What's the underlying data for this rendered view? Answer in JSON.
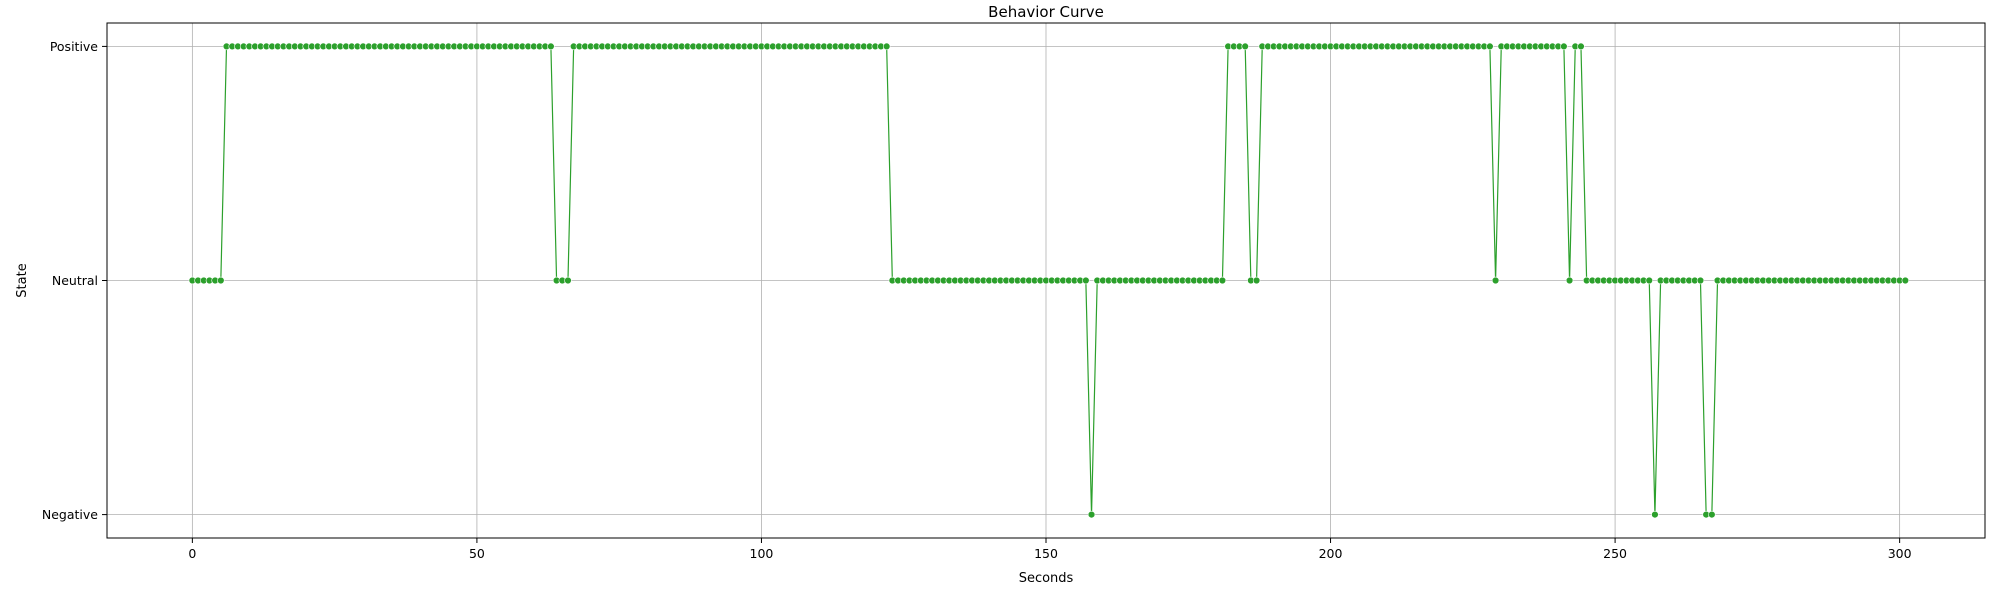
{
  "chart_data": {
    "type": "line",
    "title": "Behavior Curve",
    "xlabel": "Seconds",
    "ylabel": "State",
    "xlim": [
      -15,
      315
    ],
    "xticks": [
      0,
      50,
      100,
      150,
      200,
      250,
      300
    ],
    "categories_y": [
      "Negative",
      "Neutral",
      "Positive"
    ],
    "ylim": [
      -0.1,
      2.1
    ],
    "grid": true,
    "legend": "none",
    "series": [
      {
        "color": "#2ca02c",
        "marker": "circle",
        "segments": [
          {
            "from": 0,
            "to": 5,
            "value": 1
          },
          {
            "from": 6,
            "to": 63,
            "value": 2
          },
          {
            "from": 64,
            "to": 66,
            "value": 1
          },
          {
            "from": 67,
            "to": 122,
            "value": 2
          },
          {
            "from": 123,
            "to": 157,
            "value": 1
          },
          {
            "from": 158,
            "to": 158,
            "value": 0
          },
          {
            "from": 159,
            "to": 181,
            "value": 1
          },
          {
            "from": 182,
            "to": 185,
            "value": 2
          },
          {
            "from": 186,
            "to": 187,
            "value": 1
          },
          {
            "from": 188,
            "to": 228,
            "value": 2
          },
          {
            "from": 229,
            "to": 229,
            "value": 1
          },
          {
            "from": 230,
            "to": 241,
            "value": 2
          },
          {
            "from": 242,
            "to": 242,
            "value": 1
          },
          {
            "from": 243,
            "to": 244,
            "value": 2
          },
          {
            "from": 245,
            "to": 256,
            "value": 1
          },
          {
            "from": 257,
            "to": 257,
            "value": 0
          },
          {
            "from": 258,
            "to": 265,
            "value": 1
          },
          {
            "from": 266,
            "to": 267,
            "value": 0
          },
          {
            "from": 268,
            "to": 301,
            "value": 1
          }
        ]
      }
    ]
  }
}
